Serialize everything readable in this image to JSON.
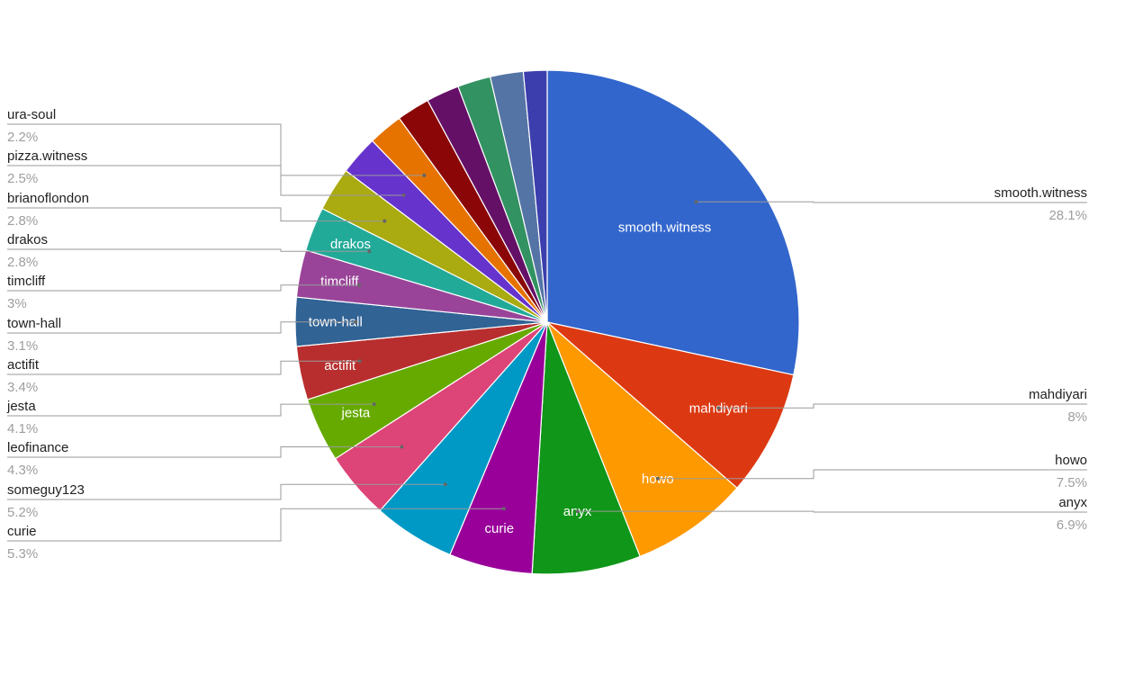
{
  "chart_data": {
    "type": "pie",
    "title": "",
    "slices": [
      {
        "label": "smooth.witness",
        "value": 28.1,
        "pct": "28.1%",
        "color": "#3366cc"
      },
      {
        "label": "mahdiyari",
        "value": 8,
        "pct": "8%",
        "color": "#dc3912"
      },
      {
        "label": "howo",
        "value": 7.5,
        "pct": "7.5%",
        "color": "#ff9900"
      },
      {
        "label": "anyx",
        "value": 6.9,
        "pct": "6.9%",
        "color": "#109618"
      },
      {
        "label": "curie",
        "value": 5.3,
        "pct": "5.3%",
        "color": "#990099"
      },
      {
        "label": "someguy123",
        "value": 5.2,
        "pct": "5.2%",
        "color": "#0099c6"
      },
      {
        "label": "leofinance",
        "value": 4.3,
        "pct": "4.3%",
        "color": "#dd4477"
      },
      {
        "label": "jesta",
        "value": 4.1,
        "pct": "4.1%",
        "color": "#66aa00"
      },
      {
        "label": "actifit",
        "value": 3.4,
        "pct": "3.4%",
        "color": "#b82e2e"
      },
      {
        "label": "town-hall",
        "value": 3.1,
        "pct": "3.1%",
        "color": "#316395"
      },
      {
        "label": "timcliff",
        "value": 3,
        "pct": "3%",
        "color": "#994499"
      },
      {
        "label": "drakos",
        "value": 2.8,
        "pct": "2.8%",
        "color": "#22aa99"
      },
      {
        "label": "brianoflondon",
        "value": 2.8,
        "pct": "2.8%",
        "color": "#aaaa11"
      },
      {
        "label": "pizza.witness",
        "value": 2.5,
        "pct": "2.5%",
        "color": "#6633cc"
      },
      {
        "label": "ura-soul",
        "value": 2.2,
        "pct": "2.2%",
        "color": "#e67300"
      },
      {
        "label": "",
        "value": 2.1,
        "pct": "",
        "color": "#8b0707"
      },
      {
        "label": "",
        "value": 2.1,
        "pct": "",
        "color": "#651067"
      },
      {
        "label": "",
        "value": 2.1,
        "pct": "",
        "color": "#329262"
      },
      {
        "label": "",
        "value": 2.1,
        "pct": "",
        "color": "#5574a6"
      },
      {
        "label": "",
        "value": 1.5,
        "pct": "",
        "color": "#3b3eac"
      }
    ],
    "inside_labels": [
      "smooth.witness",
      "mahdiyari",
      "howo",
      "anyx",
      "curie",
      "jesta",
      "actifit",
      "town-hall",
      "timcliff",
      "drakos"
    ],
    "legend": "labeled callouts",
    "start_angle_deg": 0,
    "direction": "clockwise"
  }
}
